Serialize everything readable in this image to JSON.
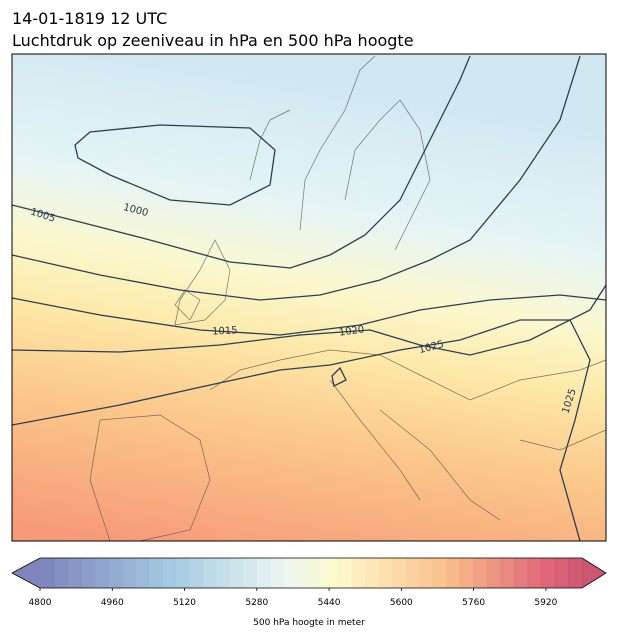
{
  "header": {
    "date": "14-01-1819 12 UTC",
    "title": "Luchtdruk op zeeniveau in hPa en 500 hPa hoogte"
  },
  "contour_labels": [
    1005,
    1000,
    1015,
    1020,
    1025,
    1025
  ],
  "colorbar": {
    "range": [
      4800,
      6000
    ],
    "ticks": [
      4800,
      4960,
      5120,
      5280,
      5440,
      5600,
      5760,
      5920
    ],
    "label": "500 hPa hoogte in meter"
  }
}
